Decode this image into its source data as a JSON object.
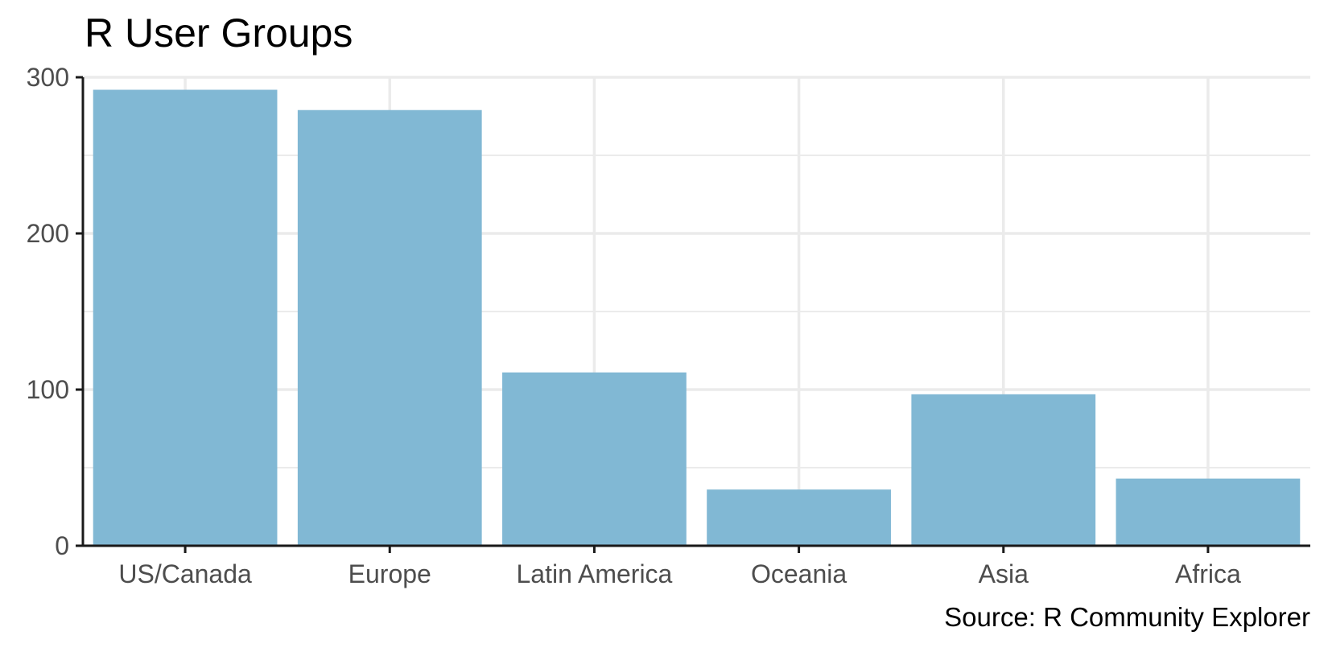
{
  "chart_data": {
    "type": "bar",
    "title": "R User Groups",
    "caption": "Source: R Community Explorer",
    "categories": [
      "US/Canada",
      "Europe",
      "Latin America",
      "Oceania",
      "Asia",
      "Africa"
    ],
    "values": [
      292,
      279,
      111,
      36,
      97,
      43
    ],
    "xlabel": "",
    "ylabel": "",
    "ylim": [
      0,
      300
    ],
    "yticks": [
      0,
      100,
      200,
      300
    ],
    "grid": true,
    "legend": "none",
    "colors": {
      "bar": "#81b8d4",
      "grid": "#ebebeb",
      "axis": "#1a1a1a"
    }
  }
}
